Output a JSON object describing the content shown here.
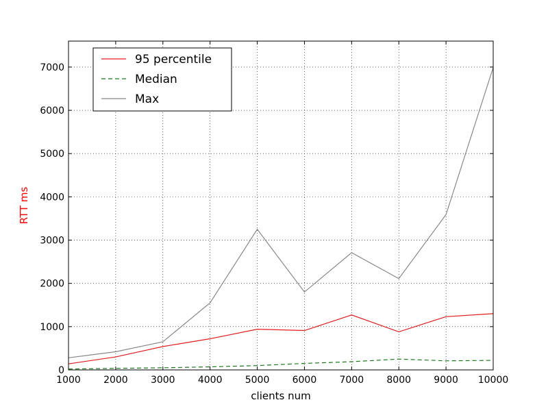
{
  "chart_data": {
    "type": "line",
    "title": "",
    "xlabel": "clients num",
    "ylabel": "RTT ms",
    "ylabel_color": "#ff0000",
    "x": [
      1000,
      2000,
      3000,
      4000,
      5000,
      6000,
      7000,
      8000,
      9000,
      10000
    ],
    "xlim": [
      1000,
      10000
    ],
    "ylim": [
      0,
      7600
    ],
    "xticks": [
      "1000",
      "2000",
      "3000",
      "4000",
      "5000",
      "6000",
      "7000",
      "8000",
      "9000",
      "10000"
    ],
    "yticks": [
      "0",
      "1000",
      "2000",
      "3000",
      "4000",
      "5000",
      "6000",
      "7000"
    ],
    "grid": true,
    "legend_position": "top-left",
    "series": [
      {
        "name": "95 percentile",
        "color": "#e41a1c",
        "dash": "solid",
        "values": [
          140,
          300,
          540,
          720,
          940,
          910,
          1270,
          880,
          1230,
          1300
        ]
      },
      {
        "name": "Median",
        "color": "#1a7a1a",
        "dash": "dashed",
        "values": [
          20,
          35,
          50,
          70,
          100,
          150,
          190,
          250,
          210,
          220
        ]
      },
      {
        "name": "Max",
        "color": "#888888",
        "dash": "solid",
        "values": [
          280,
          420,
          650,
          1550,
          3250,
          1800,
          2710,
          2110,
          3590,
          6990
        ]
      }
    ]
  }
}
